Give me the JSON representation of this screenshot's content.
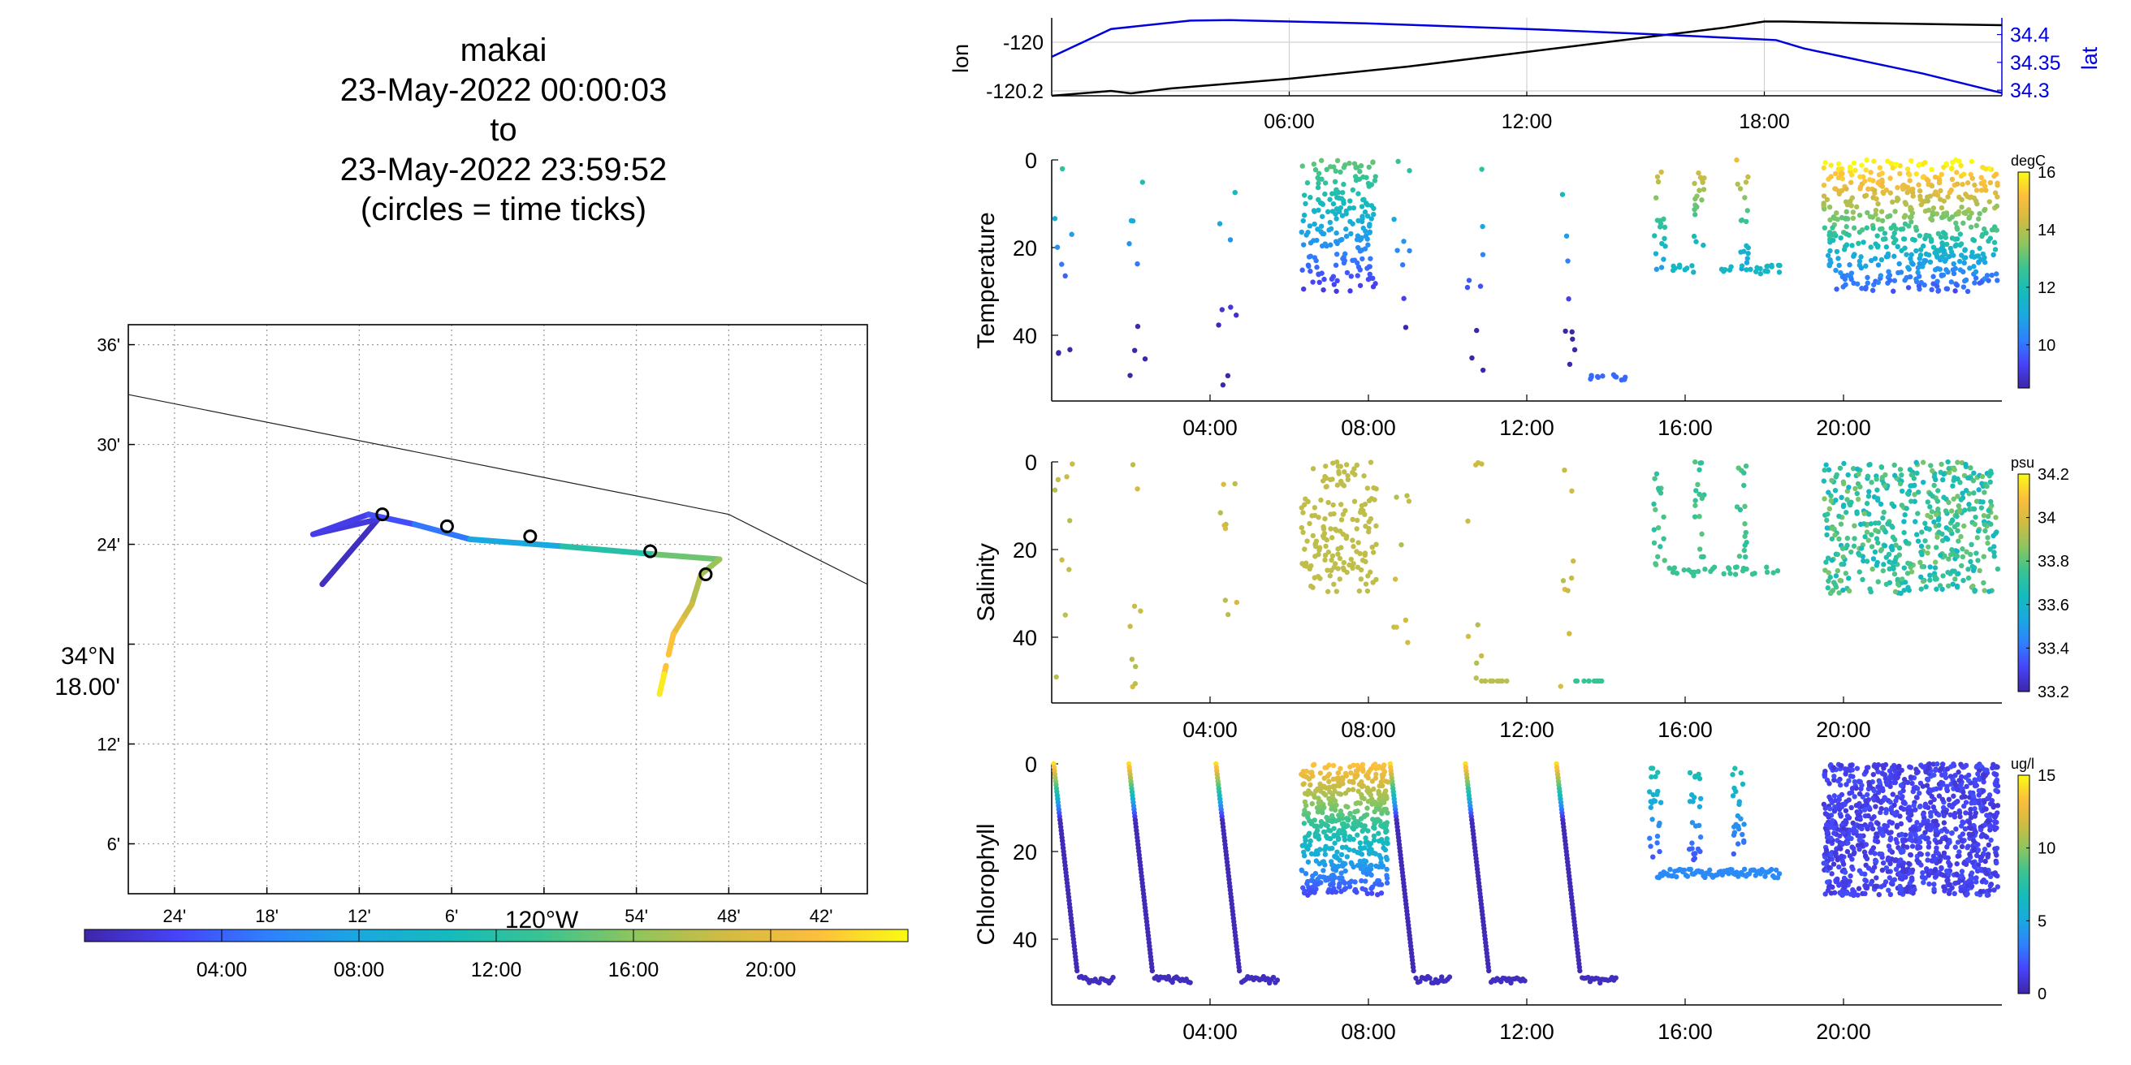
{
  "title": {
    "lines": [
      "makai",
      "23-May-2022 00:00:03",
      "to",
      "23-May-2022 23:59:52",
      "(circles = time ticks)"
    ]
  },
  "colors": {
    "line_lon": "#000000",
    "line_lat": "#0000dd",
    "lat_axis": "#0000dd",
    "grid": "#d0d0d0",
    "colormap": [
      "#3e26a8",
      "#4743f8",
      "#2f80fe",
      "#1aa8e0",
      "#15bbbc",
      "#3ac391",
      "#8dc55e",
      "#d1bb43",
      "#fdbe3d",
      "#f9fb14"
    ]
  },
  "chart_data": [
    {
      "id": "map",
      "type": "line",
      "xlabel": "120°W",
      "ylabel": "34°N 18.00'",
      "xlim": [
        -120.45,
        -119.65
      ],
      "ylim": [
        34.05,
        34.62
      ],
      "xticks": [
        -120.4,
        -120.3,
        -120.2,
        -120.1,
        -120.0,
        -119.9,
        -119.8,
        -119.7
      ],
      "xticklabels": [
        "24'",
        "18'",
        "12'",
        "6'",
        "",
        "54'",
        "48'",
        "42'"
      ],
      "yticks": [
        34.1,
        34.2,
        34.3,
        34.4,
        34.5,
        34.6
      ],
      "yticklabels": [
        "6'",
        "12'",
        "",
        "24'",
        "30'",
        "36'"
      ],
      "x_center_label": "120°W",
      "y_center_label_1": "34°N",
      "y_center_label_2": "18.00'",
      "coastline": [
        [
          -120.45,
          34.55
        ],
        [
          -119.8,
          34.43
        ],
        [
          -119.65,
          34.36
        ]
      ],
      "track": [
        {
          "x": -120.24,
          "y": 34.36,
          "t": 0.0
        },
        {
          "x": -120.18,
          "y": 34.425,
          "t": 1.6
        },
        {
          "x": -120.25,
          "y": 34.41,
          "t": 1.9
        },
        {
          "x": -120.19,
          "y": 34.43,
          "t": 2.4
        },
        {
          "x": -120.14,
          "y": 34.42,
          "t": 4.0
        },
        {
          "x": -120.08,
          "y": 34.405,
          "t": 6.0
        },
        {
          "x": -119.98,
          "y": 34.398,
          "t": 10.0
        },
        {
          "x": -119.88,
          "y": 34.39,
          "t": 14.0
        },
        {
          "x": -119.81,
          "y": 34.385,
          "t": 16.0
        },
        {
          "x": -119.83,
          "y": 34.37,
          "t": 17.0
        },
        {
          "x": -119.84,
          "y": 34.34,
          "t": 18.0
        },
        {
          "x": -119.85,
          "y": 34.325,
          "t": 19.5
        },
        {
          "x": -119.86,
          "y": 34.31,
          "t": 20.5
        },
        {
          "x": -119.87,
          "y": 34.27,
          "t": 22.5
        },
        {
          "x": -119.875,
          "y": 34.25,
          "t": 24.0
        }
      ],
      "time_ticks": [
        [
          -120.175,
          34.43
        ],
        [
          -120.105,
          34.418
        ],
        [
          -120.015,
          34.408
        ],
        [
          -119.885,
          34.393
        ],
        [
          -119.825,
          34.37
        ]
      ],
      "colorbar_ticks": [
        4,
        8,
        12,
        16,
        20
      ],
      "colorbar_labels": [
        "04:00",
        "08:00",
        "12:00",
        "16:00",
        "20:00"
      ]
    },
    {
      "id": "lonlat",
      "type": "line",
      "ylabel": "lon",
      "y2label": "lat",
      "xlim": [
        0,
        24
      ],
      "ylim": [
        -120.22,
        -119.9
      ],
      "y2lim": [
        34.29,
        34.43
      ],
      "yticks": [
        -120.2,
        -120
      ],
      "yticklabels": [
        "-120.2",
        "-120"
      ],
      "y2ticks": [
        34.3,
        34.35,
        34.4
      ],
      "y2ticklabels": [
        "34.3",
        "34.35",
        "34.4"
      ],
      "xticks": [
        6,
        12,
        18
      ],
      "xticklabels": [
        "06:00",
        "12:00",
        "18:00"
      ],
      "series": [
        {
          "name": "lon",
          "x": [
            0,
            1.5,
            2.0,
            2.5,
            3,
            6,
            9,
            12,
            14,
            16,
            17,
            18,
            18.5,
            20,
            22,
            24
          ],
          "y": [
            -120.22,
            -120.2,
            -120.21,
            -120.2,
            -120.19,
            -120.15,
            -120.1,
            -120.04,
            -120.0,
            -119.96,
            -119.94,
            -119.915,
            -119.915,
            -119.92,
            -119.925,
            -119.93
          ]
        },
        {
          "name": "lat",
          "x": [
            0,
            1.5,
            3.5,
            4.5,
            8,
            12,
            16,
            18.3,
            19,
            20,
            21,
            22,
            24
          ],
          "y": [
            34.36,
            34.41,
            34.425,
            34.426,
            34.42,
            34.41,
            34.398,
            34.39,
            34.375,
            34.36,
            34.345,
            34.33,
            34.295
          ]
        }
      ]
    },
    {
      "id": "temperature",
      "type": "scatter",
      "ylabel": "Temperature",
      "units": "degC",
      "xlim": [
        0,
        24
      ],
      "ylim": [
        55,
        0
      ],
      "yticks": [
        0,
        20,
        40
      ],
      "xticks": [
        4,
        8,
        12,
        16,
        20
      ],
      "xticklabels": [
        "04:00",
        "08:00",
        "12:00",
        "16:00",
        "20:00"
      ],
      "clim": [
        8.5,
        16
      ],
      "cticks": [
        10,
        12,
        14,
        16
      ],
      "cticklabels": [
        "10",
        "12",
        "14",
        "16"
      ]
    },
    {
      "id": "salinity",
      "type": "scatter",
      "ylabel": "Salinity",
      "units": "psu",
      "xlim": [
        0,
        24
      ],
      "ylim": [
        55,
        0
      ],
      "yticks": [
        0,
        20,
        40
      ],
      "xticks": [
        4,
        8,
        12,
        16,
        20
      ],
      "xticklabels": [
        "04:00",
        "08:00",
        "12:00",
        "16:00",
        "20:00"
      ],
      "clim": [
        33.2,
        34.2
      ],
      "cticks": [
        33.2,
        33.4,
        33.6,
        33.8,
        34,
        34.2
      ],
      "cticklabels": [
        "33.2",
        "33.4",
        "33.6",
        "33.8",
        "34",
        "34.2"
      ]
    },
    {
      "id": "chlorophyll",
      "type": "scatter",
      "ylabel": "Chlorophyll",
      "units": "ug/l",
      "xlim": [
        0,
        24
      ],
      "ylim": [
        55,
        0
      ],
      "yticks": [
        0,
        20,
        40
      ],
      "xticks": [
        4,
        8,
        12,
        16,
        20
      ],
      "xticklabels": [
        "04:00",
        "08:00",
        "12:00",
        "16:00",
        "20:00"
      ],
      "clim": [
        0,
        15
      ],
      "cticks": [
        0,
        5,
        10,
        15
      ],
      "cticklabels": [
        "0",
        "5",
        "10",
        "15"
      ]
    }
  ]
}
